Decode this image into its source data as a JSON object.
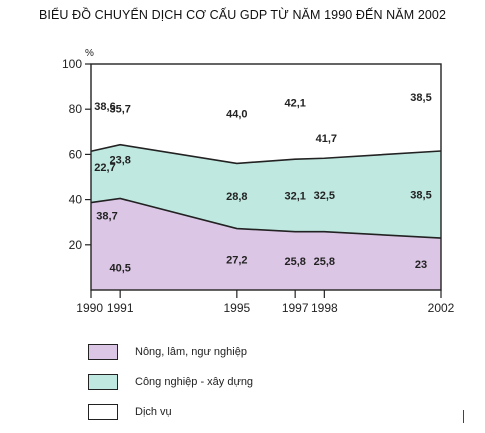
{
  "chart_data": {
    "type": "area",
    "stacked": true,
    "title": "BIỂU ĐỒ CHUYỂN DỊCH CƠ CẤU GDP TỪ NĂM 1990 ĐẾN NĂM 2002",
    "y_unit": "%",
    "ylim": [
      0,
      100
    ],
    "yticks": [
      20,
      40,
      60,
      80,
      100
    ],
    "x": [
      1990,
      1991,
      1995,
      1997,
      1998,
      2002
    ],
    "x_tick_labels": [
      "1990",
      "1991",
      "1995",
      "1997",
      "1998",
      "2002"
    ],
    "series": [
      {
        "name": "Nông, lâm, ngư nghiệp",
        "color": "#dcc6e6",
        "values": [
          38.7,
          40.5,
          27.2,
          25.8,
          25.8,
          23
        ],
        "labels": [
          "38,7",
          "40,5",
          "27,2",
          "25,8",
          "25,8",
          "23"
        ]
      },
      {
        "name": "Công nghiệp - xây dựng",
        "color": "#bfe8e0",
        "values": [
          22.7,
          23.8,
          28.8,
          32.1,
          32.5,
          38.5
        ],
        "labels": [
          "22,7",
          "23,8",
          "28,8",
          "32,1",
          "32,5",
          "38,5"
        ]
      },
      {
        "name": "Dịch vụ",
        "color": "#ffffff",
        "values": [
          38.6,
          35.7,
          44.0,
          42.1,
          41.7,
          38.5
        ],
        "labels": [
          "38,6",
          "35,7",
          "44,0",
          "42,1",
          "41,7",
          "38,5"
        ]
      }
    ],
    "grid": false,
    "legend_position": "bottom-left"
  }
}
